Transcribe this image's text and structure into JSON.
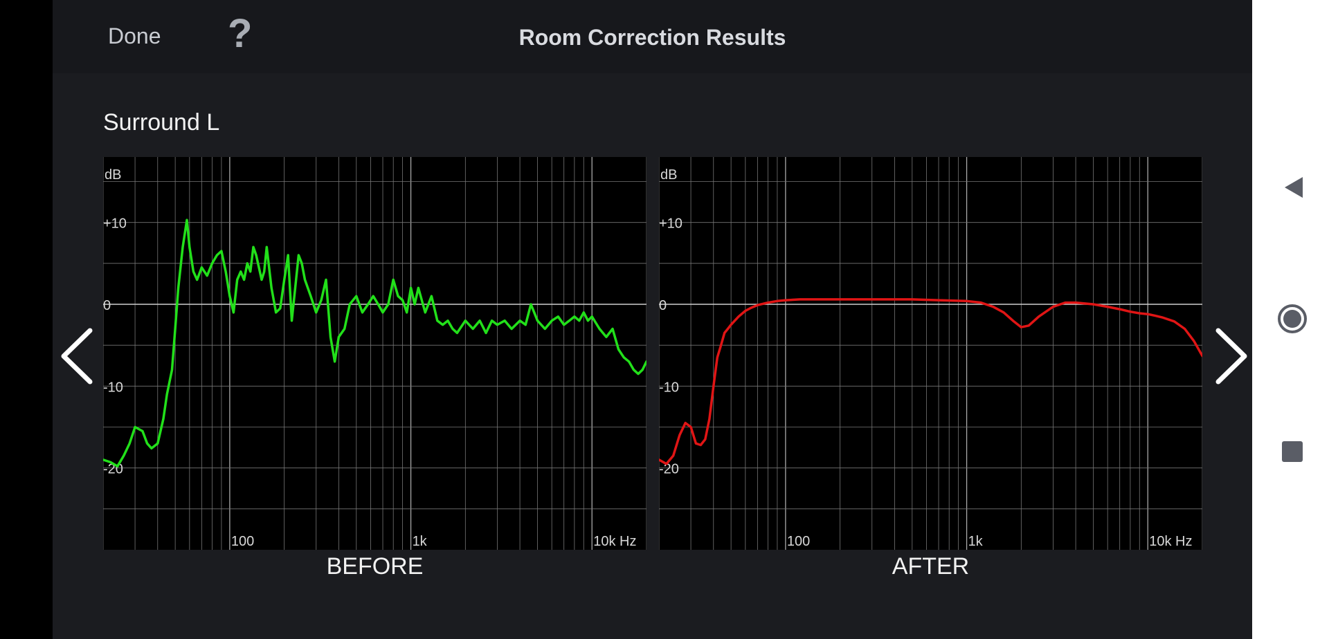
{
  "header": {
    "done_label": "Done",
    "help_label": "?",
    "title": "Room Correction Results"
  },
  "speaker_name": "Surround L",
  "colors": {
    "before_curve": "#22e01a",
    "after_curve": "#e01515",
    "grid": "#777777",
    "zero_line": "#d0d0d0"
  },
  "icons": {
    "prev": "chevron-left-icon",
    "next": "chevron-right-icon",
    "back": "triangle-back-icon",
    "home": "circle-home-icon",
    "recents": "square-recents-icon"
  },
  "chart_data": [
    {
      "type": "line",
      "label": "BEFORE",
      "ylabel": "dB",
      "ylim": [
        -30,
        18
      ],
      "yticks": [
        "+10",
        "0",
        "-10",
        "-20"
      ],
      "xscale": "log",
      "xlim": [
        20,
        20000
      ],
      "xticks": [
        "100",
        "1k",
        "10k Hz"
      ],
      "grid": true,
      "x": [
        20,
        22,
        24,
        26,
        28,
        30,
        33,
        35,
        37,
        40,
        43,
        45,
        48,
        50,
        52,
        55,
        58,
        60,
        63,
        66,
        70,
        75,
        80,
        85,
        90,
        95,
        100,
        105,
        110,
        115,
        120,
        125,
        130,
        135,
        140,
        150,
        155,
        160,
        170,
        180,
        190,
        200,
        210,
        220,
        230,
        240,
        250,
        260,
        280,
        300,
        320,
        340,
        360,
        380,
        400,
        430,
        460,
        500,
        540,
        580,
        620,
        660,
        700,
        750,
        800,
        850,
        900,
        950,
        1000,
        1050,
        1100,
        1200,
        1300,
        1400,
        1500,
        1600,
        1700,
        1800,
        2000,
        2200,
        2400,
        2600,
        2800,
        3000,
        3300,
        3600,
        4000,
        4300,
        4600,
        5000,
        5500,
        6000,
        6500,
        7000,
        7500,
        8000,
        8500,
        9000,
        9500,
        10000,
        11000,
        12000,
        13000,
        14000,
        15000,
        16000,
        17000,
        18000,
        19000,
        20000
      ],
      "values": [
        -19,
        -19.3,
        -19.8,
        -18.5,
        -17,
        -15,
        -15.5,
        -17,
        -17.6,
        -17,
        -14,
        -11,
        -8,
        -3,
        2,
        7,
        10.3,
        7,
        4,
        3,
        4.5,
        3.5,
        5,
        6,
        6.5,
        4,
        1,
        -1,
        3,
        4,
        3,
        5,
        4,
        7,
        6,
        3,
        4,
        7,
        2,
        -1,
        -0.5,
        3,
        6,
        -2,
        2,
        6,
        5,
        3,
        1,
        -1,
        0.5,
        3,
        -4,
        -7,
        -4,
        -3,
        0,
        1,
        -1,
        0,
        1,
        0,
        -1,
        0,
        3,
        1,
        0.5,
        -1,
        2,
        0,
        2,
        -1,
        1,
        -2,
        -2.5,
        -2,
        -3,
        -3.5,
        -2,
        -3,
        -2,
        -3.5,
        -2,
        -2.5,
        -2,
        -3,
        -2,
        -2.5,
        0,
        -2,
        -3,
        -2,
        -1.5,
        -2.5,
        -2,
        -1.5,
        -2,
        -1,
        -2,
        -1.5,
        -3,
        -4,
        -3,
        -5.5,
        -6.5,
        -7,
        -8,
        -8.5,
        -8,
        -7
      ]
    },
    {
      "type": "line",
      "label": "AFTER",
      "ylabel": "dB",
      "ylim": [
        -30,
        18
      ],
      "yticks": [
        "+10",
        "0",
        "-10",
        "-20"
      ],
      "xscale": "log",
      "xlim": [
        20,
        20000
      ],
      "xticks": [
        "100",
        "1k",
        "10k Hz"
      ],
      "grid": true,
      "x": [
        20,
        22,
        24,
        26,
        28,
        30,
        32,
        34,
        36,
        38,
        40,
        42,
        44,
        46,
        48,
        50,
        55,
        60,
        65,
        70,
        80,
        90,
        100,
        120,
        150,
        200,
        300,
        500,
        700,
        1000,
        1200,
        1400,
        1600,
        1800,
        2000,
        2200,
        2500,
        3000,
        3500,
        4000,
        5000,
        6000,
        7000,
        8000,
        9000,
        10000,
        11000,
        12000,
        14000,
        16000,
        18000,
        20000
      ],
      "values": [
        -19,
        -19.5,
        -18.5,
        -16,
        -14.5,
        -15,
        -17,
        -17.2,
        -16.5,
        -14,
        -10,
        -6.5,
        -5,
        -3.5,
        -3,
        -2.5,
        -1.5,
        -0.8,
        -0.4,
        -0.1,
        0.2,
        0.4,
        0.5,
        0.6,
        0.6,
        0.6,
        0.6,
        0.6,
        0.5,
        0.4,
        0.2,
        -0.3,
        -1,
        -2,
        -2.8,
        -2.6,
        -1.5,
        -0.3,
        0.2,
        0.2,
        0,
        -0.3,
        -0.6,
        -0.9,
        -1.1,
        -1.2,
        -1.4,
        -1.6,
        -2.1,
        -3,
        -4.5,
        -6.3
      ]
    }
  ]
}
